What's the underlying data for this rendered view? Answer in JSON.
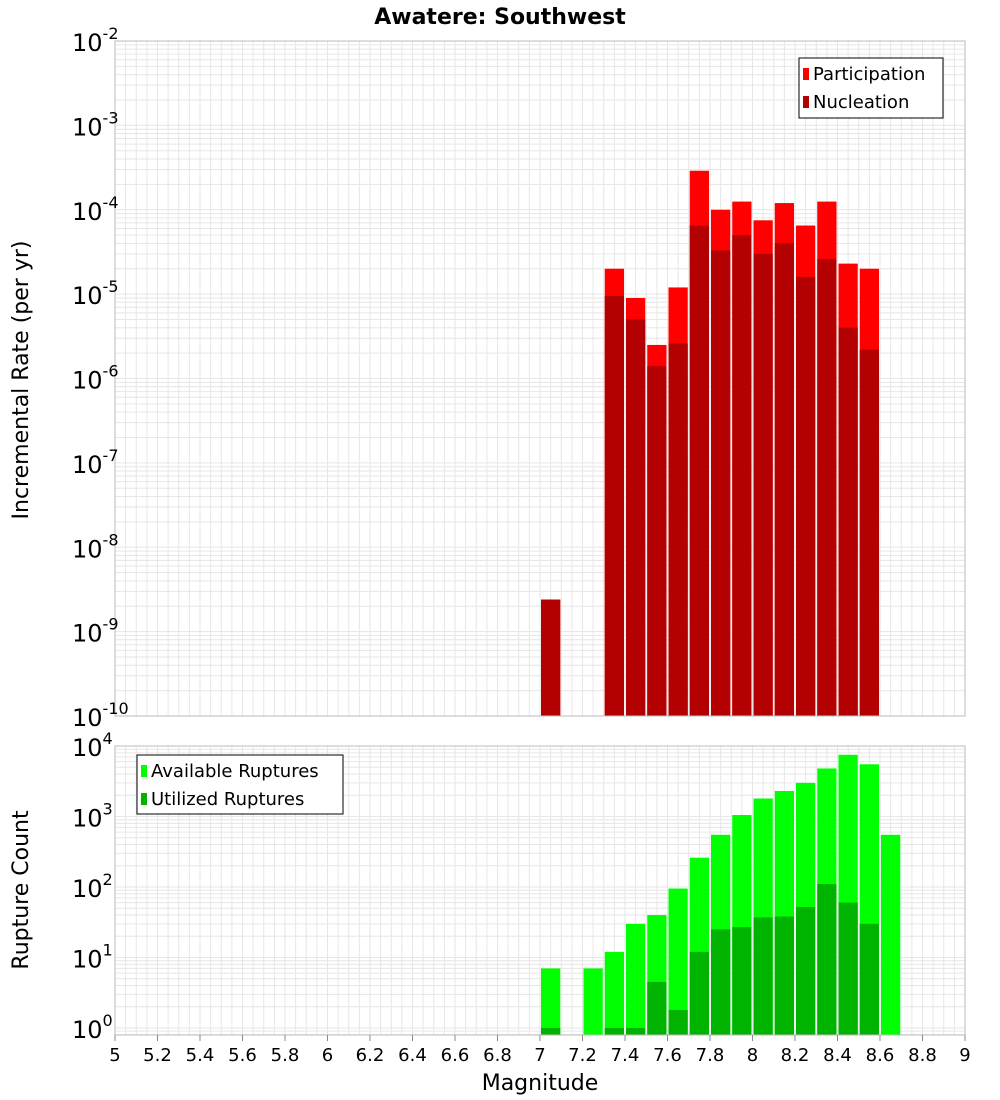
{
  "title": "Awatere: Southwest",
  "xlabel": "Magnitude",
  "colors": {
    "participation": "#ff0000",
    "nucleation": "#b30000",
    "available": "#00ff00",
    "utilized": "#00b300",
    "grid": "#e6e6e6",
    "frame": "#bbbbbb"
  },
  "chart_data": [
    {
      "type": "bar",
      "scale": "log",
      "ylabel": "Incremental Rate (per yr)",
      "ylim_exp": [
        -10,
        -2
      ],
      "xlim": [
        5,
        9
      ],
      "bar_width": 0.1,
      "legend_placement": "top-right",
      "x": [
        7.05,
        7.35,
        7.45,
        7.55,
        7.65,
        7.75,
        7.85,
        7.95,
        8.05,
        8.15,
        8.25,
        8.35,
        8.45,
        8.55
      ],
      "series": [
        {
          "name": "Participation",
          "values": [
            2.4e-09,
            2e-05,
            9e-06,
            2.5e-06,
            1.2e-05,
            0.00029,
            0.0001,
            0.000125,
            7.5e-05,
            0.00012,
            6.5e-05,
            0.000125,
            2.3e-05,
            2e-05
          ]
        },
        {
          "name": "Nucleation",
          "values": [
            2.4e-09,
            9.5e-06,
            5e-06,
            1.4e-06,
            2.6e-06,
            6.5e-05,
            3.3e-05,
            5e-05,
            3e-05,
            4e-05,
            1.6e-05,
            2.6e-05,
            4e-06,
            2.2e-06
          ]
        }
      ],
      "yticks": [
        {
          "base": "10",
          "exp": "-10"
        },
        {
          "base": "10",
          "exp": "-9"
        },
        {
          "base": "10",
          "exp": "-8"
        },
        {
          "base": "10",
          "exp": "-7"
        },
        {
          "base": "10",
          "exp": "-6"
        },
        {
          "base": "10",
          "exp": "-5"
        },
        {
          "base": "10",
          "exp": "-4"
        },
        {
          "base": "10",
          "exp": "-3"
        },
        {
          "base": "10",
          "exp": "-2"
        }
      ]
    },
    {
      "type": "bar",
      "scale": "log",
      "ylabel": "Rupture Count",
      "ylim_exp": [
        -0.1,
        4
      ],
      "xlim": [
        5,
        9
      ],
      "bar_width": 0.1,
      "legend_placement": "top-left",
      "x": [
        7.05,
        7.25,
        7.35,
        7.45,
        7.55,
        7.65,
        7.75,
        7.85,
        7.95,
        8.05,
        8.15,
        8.25,
        8.35,
        8.45,
        8.55,
        8.65
      ],
      "series": [
        {
          "name": "Available Ruptures",
          "values": [
            7,
            7,
            12,
            30,
            40,
            95,
            260,
            550,
            1050,
            1800,
            2300,
            3000,
            4800,
            7500,
            5500,
            550
          ]
        },
        {
          "name": "Utilized Ruptures",
          "values": [
            1,
            0,
            1,
            1,
            4.5,
            1.8,
            12,
            25,
            27,
            37,
            38,
            52,
            110,
            60,
            30,
            0
          ]
        }
      ],
      "yticks": [
        {
          "base": "10",
          "exp": "0"
        },
        {
          "base": "10",
          "exp": "1"
        },
        {
          "base": "10",
          "exp": "2"
        },
        {
          "base": "10",
          "exp": "3"
        },
        {
          "base": "10",
          "exp": "4"
        }
      ]
    }
  ],
  "xticks": [
    "5",
    "5.2",
    "5.4",
    "5.6",
    "5.8",
    "6",
    "6.2",
    "6.4",
    "6.6",
    "6.8",
    "7",
    "7.2",
    "7.4",
    "7.6",
    "7.8",
    "8",
    "8.2",
    "8.4",
    "8.6",
    "8.8",
    "9"
  ]
}
